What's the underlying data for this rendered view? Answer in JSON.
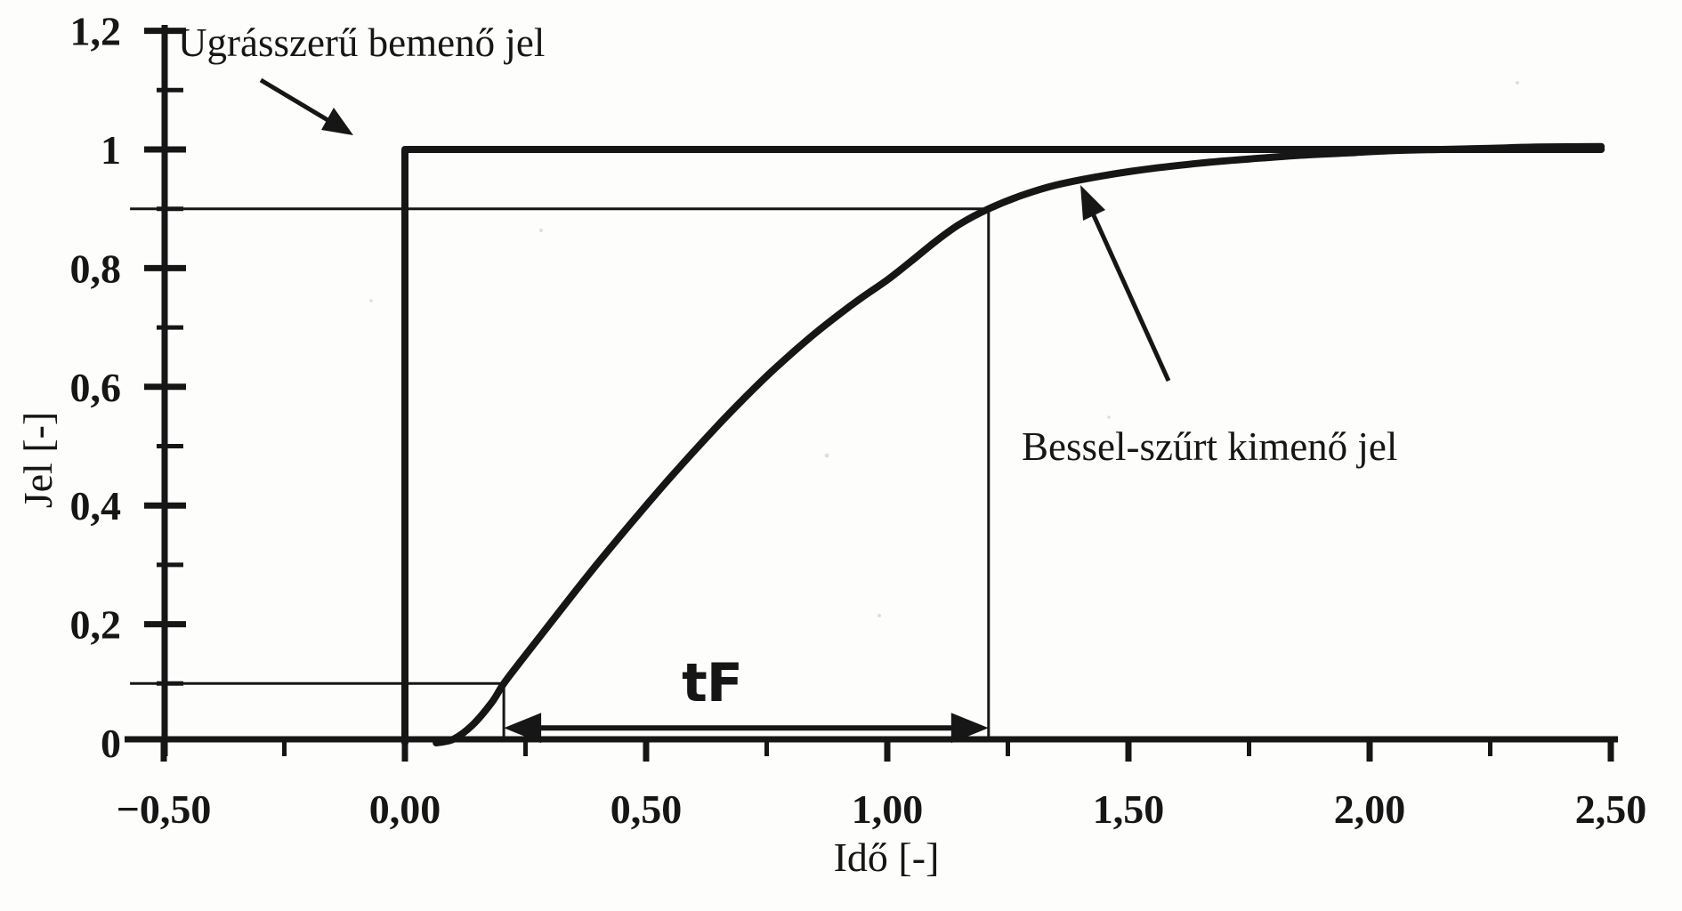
{
  "figure": {
    "background": "#fdfdfb",
    "ink": "#161616",
    "labels": {
      "input_annotation": "Ugrásszerű bemenő jel",
      "output_annotation": "Bessel-szűrt kimenő jel",
      "rise_time": "tF",
      "x_axis": "Idő [-]",
      "y_axis": "Jel [-]"
    }
  },
  "chart_data": {
    "type": "line",
    "title": "",
    "xlabel": "Idő [-]",
    "ylabel": "Jel [-]",
    "xlim": [
      -0.5,
      2.5
    ],
    "ylim": [
      0,
      1.2
    ],
    "grid": false,
    "legend_position": "none",
    "x_tick_values": [
      -0.5,
      0,
      0.5,
      1,
      1.5,
      2,
      2.5
    ],
    "x_tick_labels": [
      "−0,50",
      "0,00",
      "0,50",
      "1,00",
      "1,50",
      "2,00",
      "2,50"
    ],
    "x_minor_tick_step": 0.25,
    "y_tick_values": [
      1.2,
      1,
      0.8,
      0.6,
      0.4,
      0.2,
      0
    ],
    "y_tick_labels": [
      "1,2",
      "1",
      "0,8",
      "0,6",
      "0,4",
      "0,2",
      "0"
    ],
    "y_minor_tick_values": [
      0.1,
      0.3,
      0.5,
      0.7,
      0.9,
      1.1
    ],
    "series": [
      {
        "name": "Ugrásszerű bemenő jel",
        "type": "step",
        "points": [
          [
            0,
            0
          ],
          [
            0,
            1
          ],
          [
            2.48,
            1
          ]
        ]
      },
      {
        "name": "Bessel-szűrt kimenő jel",
        "type": "smooth",
        "points": [
          [
            0.065,
            0
          ],
          [
            0.1,
            0.006
          ],
          [
            0.14,
            0.03
          ],
          [
            0.18,
            0.068
          ],
          [
            0.205,
            0.1
          ],
          [
            0.25,
            0.148
          ],
          [
            0.3,
            0.2
          ],
          [
            0.35,
            0.252
          ],
          [
            0.4,
            0.303
          ],
          [
            0.45,
            0.352
          ],
          [
            0.5,
            0.4
          ],
          [
            0.55,
            0.447
          ],
          [
            0.6,
            0.492
          ],
          [
            0.65,
            0.536
          ],
          [
            0.7,
            0.578
          ],
          [
            0.75,
            0.618
          ],
          [
            0.8,
            0.655
          ],
          [
            0.85,
            0.69
          ],
          [
            0.9,
            0.722
          ],
          [
            0.95,
            0.752
          ],
          [
            1,
            0.78
          ],
          [
            1.05,
            0.812
          ],
          [
            1.1,
            0.845
          ],
          [
            1.15,
            0.874
          ],
          [
            1.21,
            0.9
          ],
          [
            1.28,
            0.923
          ],
          [
            1.35,
            0.94
          ],
          [
            1.45,
            0.956
          ],
          [
            1.55,
            0.968
          ],
          [
            1.65,
            0.977
          ],
          [
            1.75,
            0.984
          ],
          [
            1.85,
            0.99
          ],
          [
            1.95,
            0.994
          ],
          [
            2.05,
            0.998
          ],
          [
            2.15,
            1
          ],
          [
            2.25,
            1.002
          ],
          [
            2.35,
            1.004
          ],
          [
            2.48,
            1.005
          ]
        ]
      }
    ],
    "annotations": {
      "rise_time_label": "tF",
      "threshold_lines": [
        {
          "y": 0.9,
          "x_from": -0.57,
          "x_to": 1.21,
          "drop_to_axis_at": 1.21
        },
        {
          "y": 0.1,
          "x_from": -0.57,
          "x_to": 0.205,
          "drop_to_axis_at": 0.205
        }
      ],
      "rise_time_span": {
        "x_from": 0.205,
        "x_to": 1.21,
        "y": 0.025
      }
    }
  }
}
